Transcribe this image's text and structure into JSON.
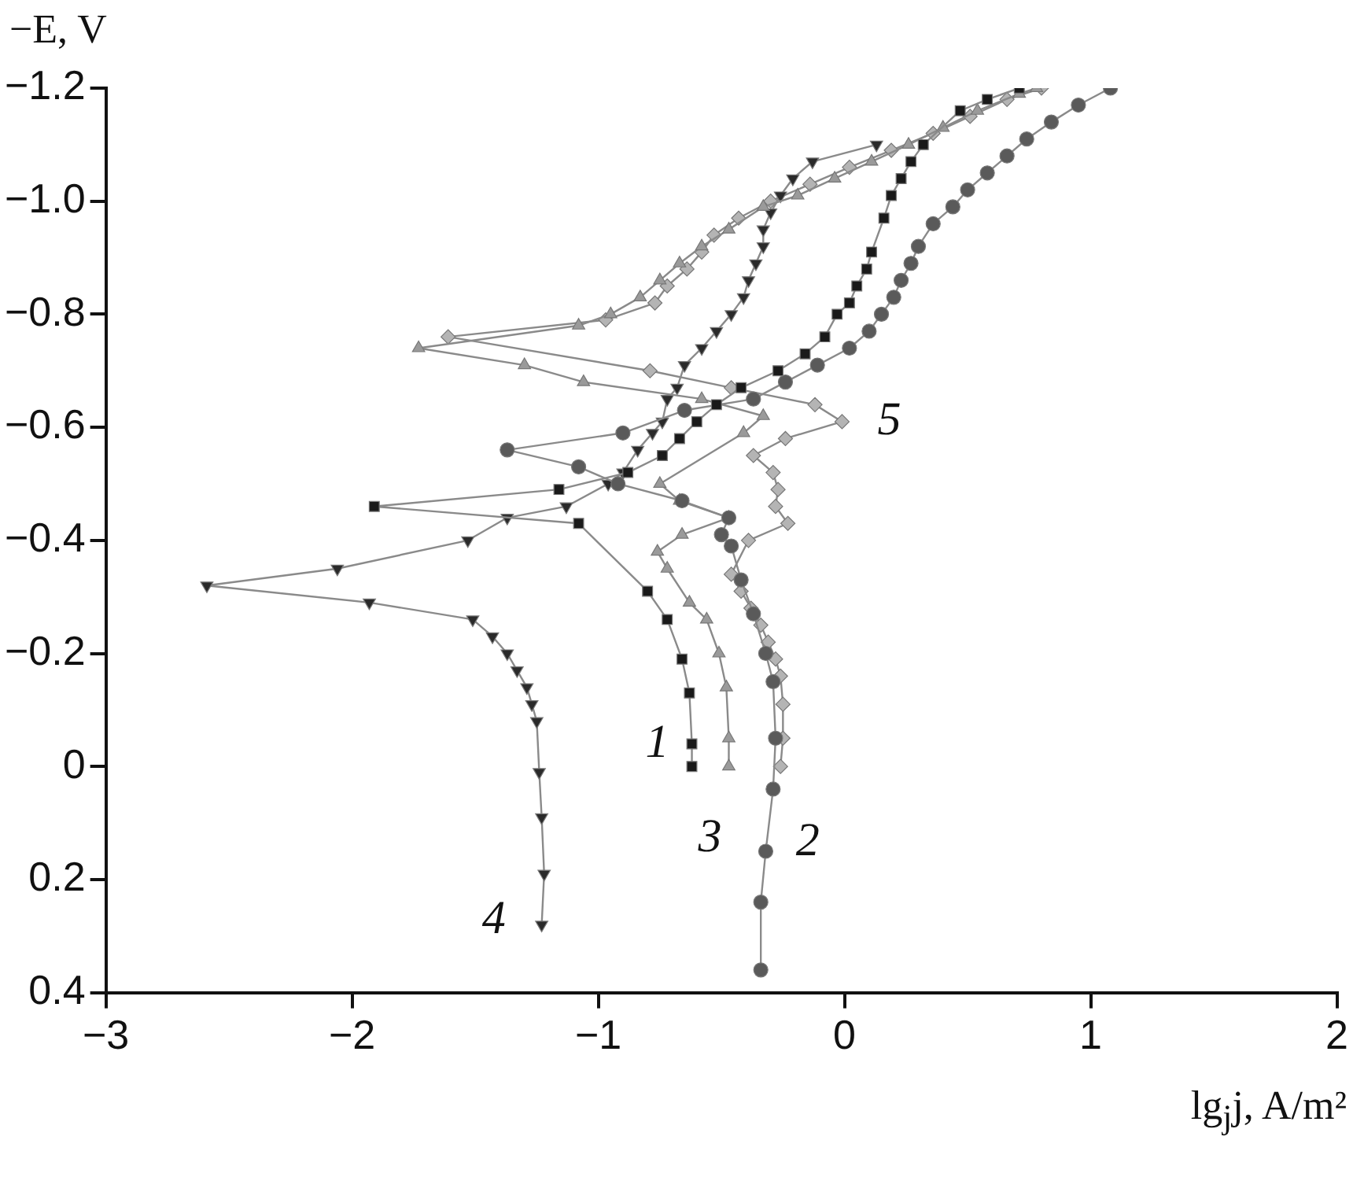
{
  "chart_data": {
    "type": "line",
    "xlabel": "lg$_{j}$j, A/m²",
    "ylabel": "−E, V",
    "xlim": [
      -3,
      2
    ],
    "xticks": [
      {
        "value": -3,
        "label": "−3"
      },
      {
        "value": -2,
        "label": "−2"
      },
      {
        "value": -1,
        "label": "−1"
      },
      0,
      1,
      2
    ],
    "ylim": [
      0.4,
      -1.2
    ],
    "yticks": [
      {
        "value": -1.2,
        "label": "−1.2"
      },
      {
        "value": -1.0,
        "label": "−1.0"
      },
      {
        "value": -0.8,
        "label": "−0.8"
      },
      {
        "value": -0.6,
        "label": "−0.6"
      },
      {
        "value": -0.4,
        "label": "−0.4"
      },
      {
        "value": -0.2,
        "label": "−0.2"
      },
      0,
      {
        "value": 0.2,
        "label": "0.2"
      },
      {
        "value": 0.4,
        "label": "0.4"
      }
    ],
    "grid": false,
    "legend": false,
    "line_style": "solid",
    "series": [
      {
        "name": "1",
        "color": "#1a1a1a",
        "marker": "square",
        "x": [
          -0.62,
          -0.62,
          -0.63,
          -0.66,
          -0.72,
          -0.8,
          -1.08,
          -1.91,
          -1.16,
          -0.88,
          -0.74,
          -0.67,
          -0.6,
          -0.52,
          -0.42,
          -0.27,
          -0.16,
          -0.08,
          -0.03,
          0.02,
          0.05,
          0.09,
          0.11,
          0.16,
          0.19,
          0.23,
          0.27,
          0.32,
          0.47,
          0.58,
          0.71
        ],
        "values": [
          0.0,
          -0.04,
          -0.13,
          -0.19,
          -0.26,
          -0.31,
          -0.43,
          -0.46,
          -0.49,
          -0.52,
          -0.55,
          -0.58,
          -0.61,
          -0.64,
          -0.67,
          -0.7,
          -0.73,
          -0.76,
          -0.8,
          -0.82,
          -0.85,
          -0.88,
          -0.91,
          -0.97,
          -1.01,
          -1.04,
          -1.07,
          -1.1,
          -1.16,
          -1.18,
          -1.2
        ]
      },
      {
        "name": "2",
        "color": "#5a5a5a",
        "marker": "circle",
        "x": [
          -0.34,
          -0.34,
          -0.32,
          -0.29,
          -0.28,
          -0.29,
          -0.32,
          -0.37,
          -0.42,
          -0.46,
          -0.5,
          -0.47,
          -0.66,
          -0.92,
          -1.08,
          -1.37,
          -0.9,
          -0.65,
          -0.37,
          -0.24,
          -0.11,
          0.02,
          0.1,
          0.15,
          0.2,
          0.23,
          0.27,
          0.3,
          0.36,
          0.44,
          0.5,
          0.58,
          0.66,
          0.74,
          0.84,
          0.95,
          1.08
        ],
        "values": [
          0.36,
          0.24,
          0.15,
          0.04,
          -0.05,
          -0.15,
          -0.2,
          -0.27,
          -0.33,
          -0.39,
          -0.41,
          -0.44,
          -0.47,
          -0.5,
          -0.53,
          -0.56,
          -0.59,
          -0.63,
          -0.65,
          -0.68,
          -0.71,
          -0.74,
          -0.77,
          -0.8,
          -0.83,
          -0.86,
          -0.89,
          -0.92,
          -0.96,
          -0.99,
          -1.02,
          -1.05,
          -1.08,
          -1.11,
          -1.14,
          -1.17,
          -1.2
        ]
      },
      {
        "name": "3",
        "color": "#9a9a9a",
        "marker": "triangle",
        "x": [
          -0.47,
          -0.47,
          -0.48,
          -0.51,
          -0.56,
          -0.63,
          -0.72,
          -0.76,
          -0.66,
          -0.47,
          -0.67,
          -0.75,
          -0.41,
          -0.33,
          -0.58,
          -1.06,
          -1.3,
          -1.73,
          -1.08,
          -0.95,
          -0.83,
          -0.75,
          -0.67,
          -0.58,
          -0.47,
          -0.33,
          -0.19,
          -0.04,
          0.11,
          0.26,
          0.4,
          0.54,
          0.71,
          0.78
        ],
        "values": [
          0.0,
          -0.05,
          -0.14,
          -0.2,
          -0.26,
          -0.29,
          -0.35,
          -0.38,
          -0.41,
          -0.44,
          -0.47,
          -0.5,
          -0.59,
          -0.62,
          -0.65,
          -0.68,
          -0.71,
          -0.74,
          -0.78,
          -0.8,
          -0.83,
          -0.86,
          -0.89,
          -0.92,
          -0.95,
          -0.99,
          -1.01,
          -1.04,
          -1.07,
          -1.1,
          -1.13,
          -1.16,
          -1.19,
          -1.2
        ]
      },
      {
        "name": "4",
        "color": "#2a2a2a",
        "marker": "triangle-down",
        "x": [
          -1.23,
          -1.22,
          -1.23,
          -1.24,
          -1.25,
          -1.27,
          -1.29,
          -1.33,
          -1.37,
          -1.43,
          -1.51,
          -1.93,
          -2.59,
          -2.06,
          -1.53,
          -1.37,
          -1.13,
          -0.96,
          -0.9,
          -0.84,
          -0.78,
          -0.74,
          -0.72,
          -0.68,
          -0.65,
          -0.58,
          -0.52,
          -0.46,
          -0.41,
          -0.39,
          -0.36,
          -0.33,
          -0.33,
          -0.3,
          -0.26,
          -0.21,
          -0.13,
          0.13
        ],
        "values": [
          0.28,
          0.19,
          0.09,
          0.01,
          -0.08,
          -0.11,
          -0.14,
          -0.17,
          -0.2,
          -0.23,
          -0.26,
          -0.29,
          -0.32,
          -0.35,
          -0.4,
          -0.44,
          -0.46,
          -0.5,
          -0.52,
          -0.56,
          -0.59,
          -0.61,
          -0.65,
          -0.67,
          -0.71,
          -0.74,
          -0.77,
          -0.8,
          -0.83,
          -0.86,
          -0.89,
          -0.92,
          -0.95,
          -0.98,
          -1.01,
          -1.04,
          -1.07,
          -1.1
        ]
      },
      {
        "name": "5",
        "color": "#b4b4b4",
        "marker": "diamond",
        "x": [
          -0.26,
          -0.25,
          -0.25,
          -0.26,
          -0.28,
          -0.31,
          -0.34,
          -0.38,
          -0.42,
          -0.46,
          -0.39,
          -0.23,
          -0.28,
          -0.27,
          -0.29,
          -0.37,
          -0.24,
          -0.01,
          -0.12,
          -0.46,
          -0.79,
          -1.61,
          -0.97,
          -0.77,
          -0.72,
          -0.64,
          -0.58,
          -0.53,
          -0.43,
          -0.3,
          -0.14,
          0.02,
          0.19,
          0.36,
          0.51,
          0.66,
          0.8
        ],
        "values": [
          0.0,
          -0.05,
          -0.11,
          -0.16,
          -0.19,
          -0.22,
          -0.25,
          -0.28,
          -0.31,
          -0.34,
          -0.4,
          -0.43,
          -0.46,
          -0.49,
          -0.52,
          -0.55,
          -0.58,
          -0.61,
          -0.64,
          -0.67,
          -0.7,
          -0.76,
          -0.79,
          -0.82,
          -0.85,
          -0.88,
          -0.91,
          -0.94,
          -0.97,
          -1.0,
          -1.03,
          -1.06,
          -1.09,
          -1.12,
          -1.15,
          -1.18,
          -1.2
        ]
      }
    ]
  }
}
